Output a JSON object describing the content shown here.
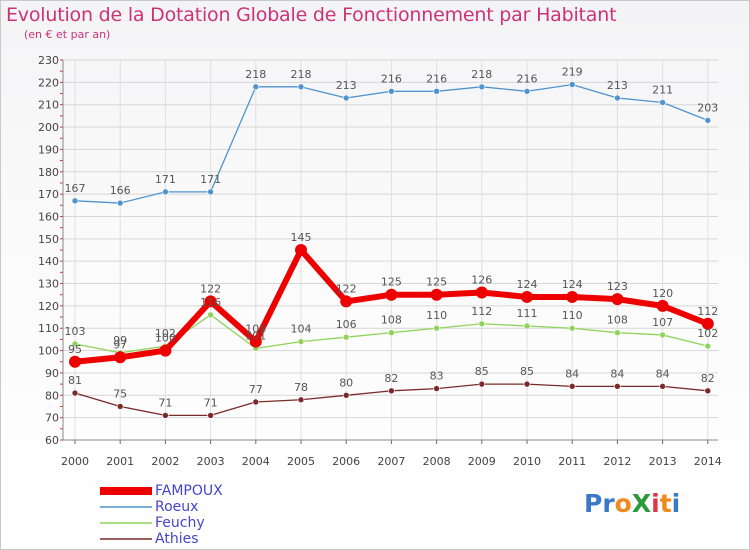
{
  "title": "Evolution de la Dotation Globale de Fonctionnement par Habitant",
  "subtitle": "(en € et par an)",
  "logo": {
    "text": "ProXiti",
    "letters": [
      "P",
      "r",
      "o",
      "X",
      "i",
      "t",
      "i"
    ],
    "colors": [
      "#3a78c8",
      "#3a78c8",
      "#f08a1c",
      "#2a9a3a",
      "#e0344a",
      "#f08a1c",
      "#3a78c8"
    ]
  },
  "chart_data": {
    "type": "line",
    "title": "Evolution de la Dotation Globale de Fonctionnement par Habitant",
    "subtitle": "(en € et par an)",
    "xlabel": "",
    "ylabel": "",
    "x": [
      "2000",
      "2001",
      "2002",
      "2003",
      "2004",
      "2005",
      "2006",
      "2007",
      "2008",
      "2009",
      "2010",
      "2011",
      "2012",
      "2013",
      "2014"
    ],
    "ylim": [
      60,
      230
    ],
    "yticks": [
      "60",
      "70",
      "80",
      "90",
      "100",
      "110",
      "120",
      "130",
      "140",
      "150",
      "160",
      "170",
      "180",
      "190",
      "200",
      "210",
      "220",
      "230"
    ],
    "grid": true,
    "legend_position": "bottom-left",
    "series": [
      {
        "name": "FAMPOUX",
        "color": "#ee0000",
        "style": "bold",
        "values": [
          95,
          97,
          100,
          122,
          104,
          145,
          122,
          125,
          125,
          126,
          124,
          124,
          123,
          120,
          112
        ],
        "labels": [
          "95",
          "97",
          "100",
          "122",
          "104",
          "145",
          "122",
          "125",
          "125",
          "126",
          "124",
          "124",
          "123",
          "120",
          "112"
        ]
      },
      {
        "name": "Roeux",
        "color": "#4f94cf",
        "style": "thin",
        "values": [
          167,
          166,
          171,
          171,
          218,
          218,
          213,
          216,
          216,
          218,
          216,
          219,
          213,
          211,
          203
        ],
        "labels": [
          "167",
          "166",
          "171",
          "171",
          "218",
          "218",
          "213",
          "216",
          "216",
          "218",
          "216",
          "219",
          "213",
          "211",
          "203"
        ]
      },
      {
        "name": "Feuchy",
        "color": "#8fd45a",
        "style": "thin",
        "values": [
          103,
          99,
          102,
          116,
          101,
          104,
          106,
          108,
          110,
          112,
          111,
          110,
          108,
          107,
          102
        ],
        "labels": [
          "103",
          "99",
          "102",
          "116",
          "101",
          "104",
          "106",
          "108",
          "110",
          "112",
          "111",
          "110",
          "108",
          "107",
          "102"
        ]
      },
      {
        "name": "Athies",
        "color": "#7a2a2a",
        "style": "thin",
        "values": [
          81,
          75,
          71,
          71,
          77,
          78,
          80,
          82,
          83,
          85,
          85,
          84,
          84,
          84,
          82
        ],
        "labels": [
          "81",
          "75",
          "71",
          "71",
          "77",
          "78",
          "80",
          "82",
          "83",
          "85",
          "85",
          "84",
          "84",
          "84",
          "82"
        ]
      }
    ]
  }
}
